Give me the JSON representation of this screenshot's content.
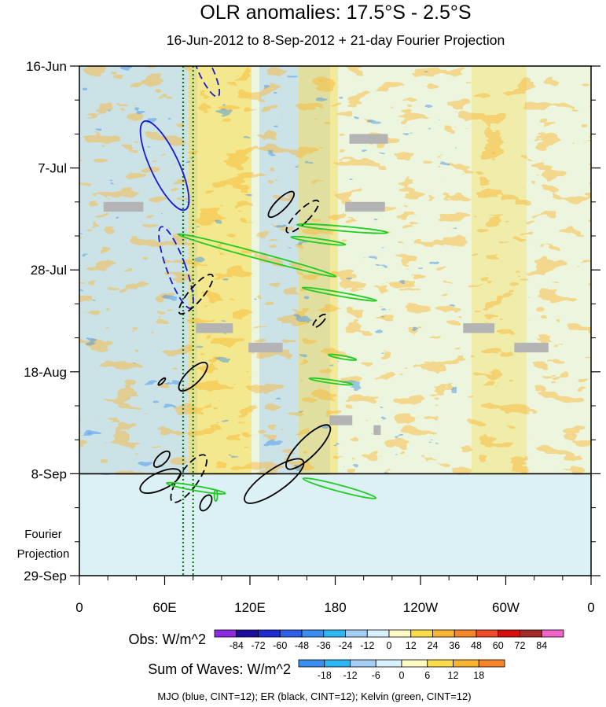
{
  "chart_data": {
    "type": "heatmap",
    "title": "OLR anomalies: 17.5°S - 2.5°S",
    "subtitle": "16-Jun-2012 to 8-Sep-2012 + 21-day Fourier Projection",
    "x_ticks": [
      "0",
      "60E",
      "120E",
      "180",
      "120W",
      "60W",
      "0"
    ],
    "x_range": [
      0,
      360
    ],
    "y_ticks": [
      "16-Jun",
      "7-Jul",
      "28-Jul",
      "18-Aug",
      "8-Sep",
      "29-Sep"
    ],
    "y_range_days": [
      0,
      105
    ],
    "projection_start_day": 84,
    "projection_label_line1": "Fourier",
    "projection_label_line2": "Projection",
    "reference_lines_lon": [
      73,
      80
    ],
    "obs_colorbar": {
      "label": "Obs: W/m^2",
      "levels": [
        "-84",
        "-72",
        "-60",
        "-48",
        "-36",
        "-24",
        "-12",
        "0",
        "12",
        "24",
        "36",
        "48",
        "60",
        "72",
        "84"
      ],
      "colors": [
        "#8a2be2",
        "#1c0fa0",
        "#1f2cd4",
        "#2f5fe8",
        "#3a8eef",
        "#2db6f1",
        "#a3cdf3",
        "#d7f0fb",
        "#fefac4",
        "#fadc4a",
        "#f9b431",
        "#f7862b",
        "#f04a28",
        "#d80d0d",
        "#a52a2a",
        "#f064c8"
      ]
    },
    "waves_colorbar": {
      "label": "Sum of Waves: W/m^2",
      "levels": [
        "-18",
        "-12",
        "-6",
        "0",
        "6",
        "12",
        "18"
      ],
      "colors": [
        "#3a8eef",
        "#2db6f1",
        "#a3cdf3",
        "#d7f0fb",
        "#fefac4",
        "#fadc4a",
        "#f9b431",
        "#f7862b"
      ]
    },
    "series": [
      {
        "name": "MJO",
        "color": "#1a1ad0",
        "contour_interval": 12
      },
      {
        "name": "ER",
        "color": "#000000",
        "contour_interval": 12
      },
      {
        "name": "Kelvin",
        "color": "#22cc22",
        "contour_interval": 12
      }
    ],
    "footer": "MJO (blue, CINT=12); ER (black, CINT=12); Kelvin (green, CINT=12)",
    "contours": [
      {
        "wave": "MJO",
        "lon": 60,
        "day": 20.5,
        "rx": 18,
        "ry": 62,
        "angle": -25,
        "dashed": false
      },
      {
        "wave": "MJO",
        "lon": 89,
        "day": 1,
        "rx": 9,
        "ry": 36,
        "angle": -25,
        "dashed": true
      },
      {
        "wave": "MJO",
        "lon": 68,
        "day": 41.5,
        "rx": 12,
        "ry": 55,
        "angle": -20,
        "dashed": true
      },
      {
        "wave": "ER",
        "lon": 142,
        "day": 28.5,
        "rx": 7,
        "ry": 22,
        "angle": 45,
        "dashed": false
      },
      {
        "wave": "ER",
        "lon": 157,
        "day": 31,
        "rx": 8,
        "ry": 28,
        "angle": 45,
        "dashed": true
      },
      {
        "wave": "ER",
        "lon": 82,
        "day": 47,
        "rx": 9,
        "ry": 32,
        "angle": 40,
        "dashed": true
      },
      {
        "wave": "ER",
        "lon": 169,
        "day": 52.5,
        "rx": 4,
        "ry": 11,
        "angle": 45,
        "dashed": true
      },
      {
        "wave": "ER",
        "lon": 80,
        "day": 64,
        "rx": 9,
        "ry": 24,
        "angle": 45,
        "dashed": false
      },
      {
        "wave": "ER",
        "lon": 58,
        "day": 81,
        "rx": 6,
        "ry": 13,
        "angle": 45,
        "dashed": false
      },
      {
        "wave": "ER",
        "lon": 161,
        "day": 78.5,
        "rx": 12,
        "ry": 38,
        "angle": 45,
        "dashed": false
      },
      {
        "wave": "ER",
        "lon": 77,
        "day": 85,
        "rx": 12,
        "ry": 36,
        "angle": 35,
        "dashed": true
      },
      {
        "wave": "ER",
        "lon": 89,
        "day": 90,
        "rx": 6,
        "ry": 11,
        "angle": 30,
        "dashed": false
      },
      {
        "wave": "ER",
        "lon": 57,
        "day": 85.5,
        "rx": 11,
        "ry": 28,
        "angle": 65,
        "dashed": false
      },
      {
        "wave": "ER",
        "lon": 137,
        "day": 85.5,
        "rx": 14,
        "ry": 45,
        "angle": 55,
        "dashed": false
      },
      {
        "wave": "ER",
        "lon": 58,
        "day": 65,
        "rx": 2,
        "ry": 6,
        "angle": 45,
        "dashed": false
      },
      {
        "wave": "Kelvin",
        "lon": 125,
        "day": 39,
        "rx": 4,
        "ry": 104,
        "angle": -75,
        "dashed": false
      },
      {
        "wave": "Kelvin",
        "lon": 183,
        "day": 47,
        "rx": 2.5,
        "ry": 48,
        "angle": -80,
        "dashed": false
      },
      {
        "wave": "Kelvin",
        "lon": 185,
        "day": 33.5,
        "rx": 3,
        "ry": 58,
        "angle": -85,
        "dashed": false
      },
      {
        "wave": "Kelvin",
        "lon": 168,
        "day": 36,
        "rx": 2.5,
        "ry": 35,
        "angle": -82,
        "dashed": false
      },
      {
        "wave": "Kelvin",
        "lon": 82,
        "day": 87,
        "rx": 3,
        "ry": 38,
        "angle": -80,
        "dashed": false
      },
      {
        "wave": "Kelvin",
        "lon": 183,
        "day": 87,
        "rx": 4,
        "ry": 48,
        "angle": -75,
        "dashed": false
      },
      {
        "wave": "Kelvin",
        "lon": 177,
        "day": 65,
        "rx": 2,
        "ry": 28,
        "angle": -82,
        "dashed": false
      },
      {
        "wave": "Kelvin",
        "lon": 185,
        "day": 60,
        "rx": 2,
        "ry": 18,
        "angle": -80,
        "dashed": false
      },
      {
        "wave": "Kelvin",
        "lon": 96,
        "day": 88.5,
        "rx": 2,
        "ry": 7,
        "angle": 0,
        "dashed": false
      }
    ],
    "missing_data_boxes": [
      {
        "lon0": 17,
        "lon1": 45,
        "day0": 28,
        "day1": 30
      },
      {
        "lon0": 190,
        "lon1": 217,
        "day0": 14,
        "day1": 16
      },
      {
        "lon0": 187,
        "lon1": 215,
        "day0": 28,
        "day1": 30
      },
      {
        "lon0": 82,
        "lon1": 108,
        "day0": 53,
        "day1": 55
      },
      {
        "lon0": 119,
        "lon1": 143,
        "day0": 57,
        "day1": 59
      },
      {
        "lon0": 270,
        "lon1": 292,
        "day0": 53,
        "day1": 55
      },
      {
        "lon0": 306,
        "lon1": 330,
        "day0": 57,
        "day1": 59
      },
      {
        "lon0": 176,
        "lon1": 192,
        "day0": 72,
        "day1": 74
      },
      {
        "lon0": 207,
        "lon1": 212,
        "day0": 74,
        "day1": 76
      }
    ]
  }
}
